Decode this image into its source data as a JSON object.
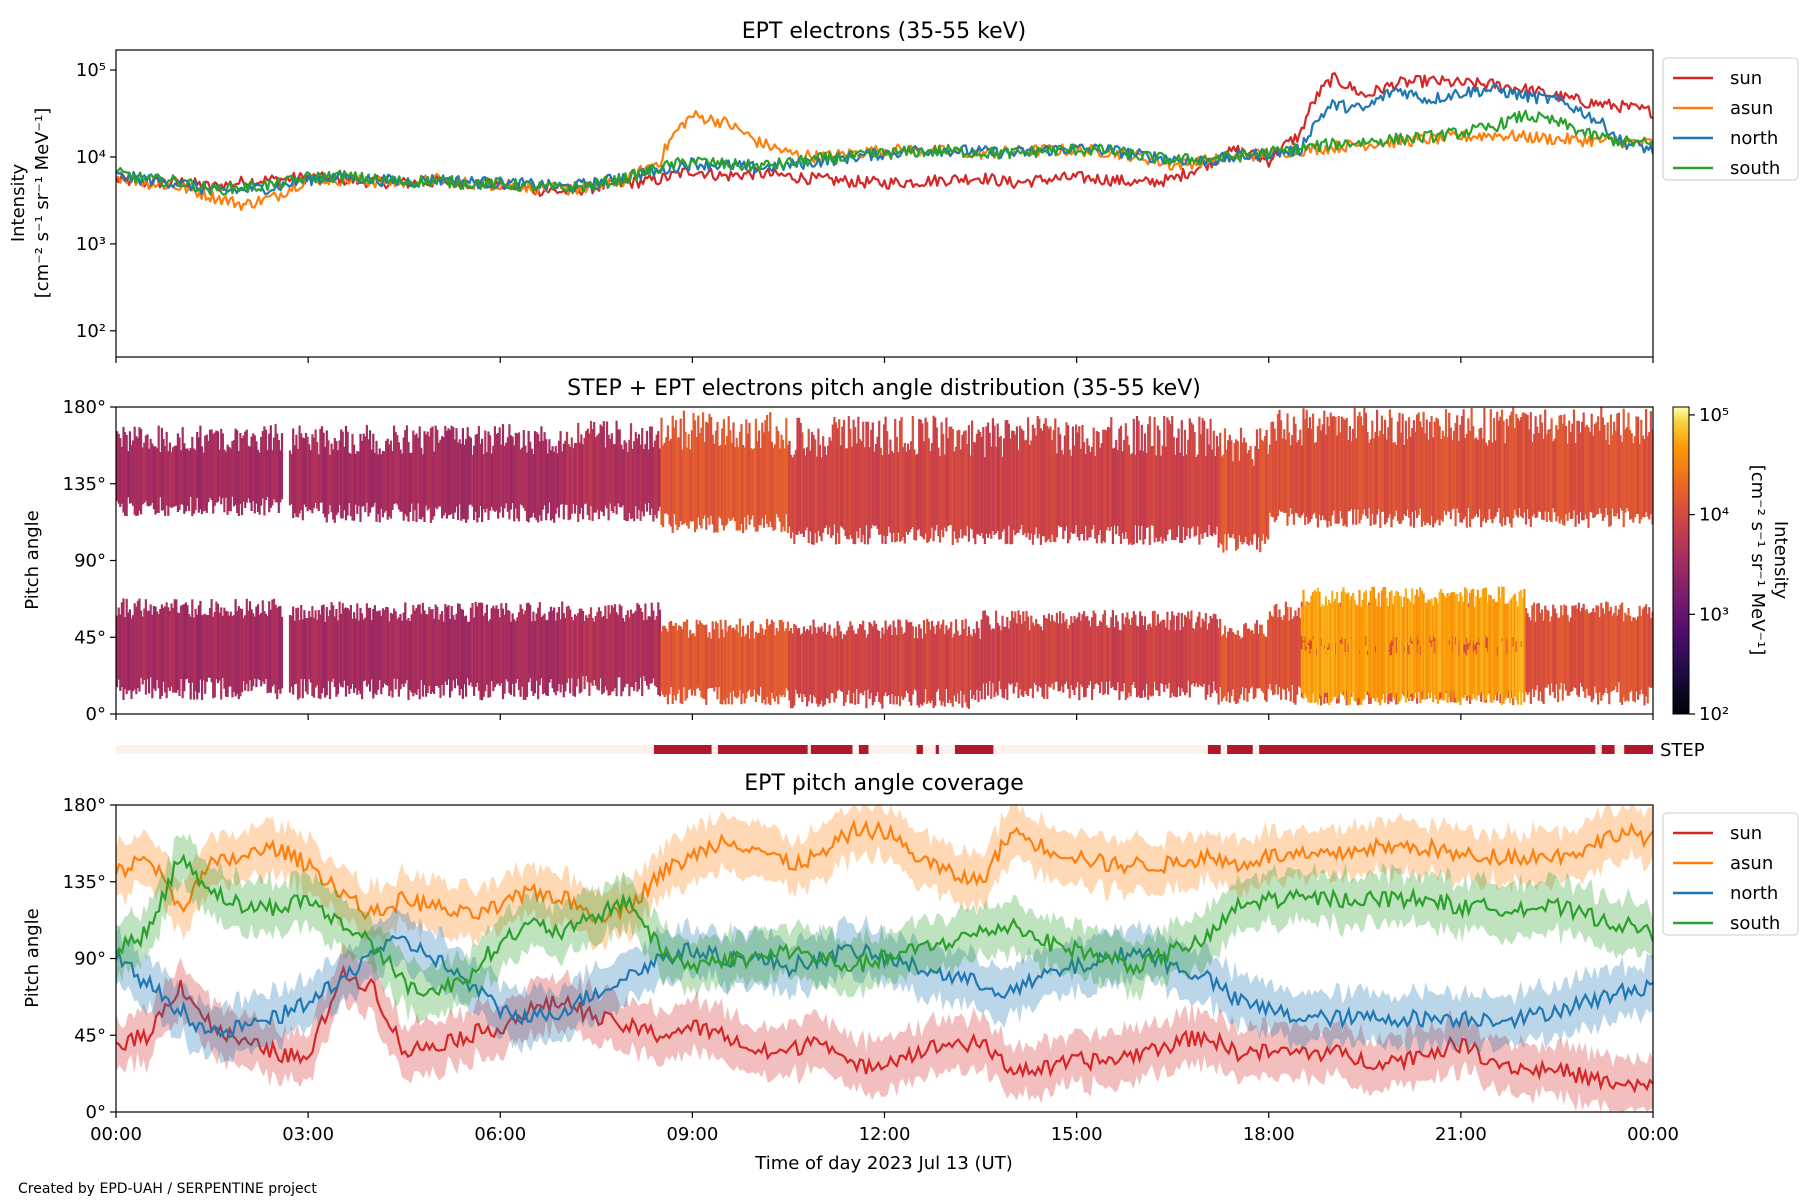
{
  "footer": "Created by EPD-UAH / SERPENTINE project",
  "xlabel": "Time of day 2023 Jul 13 (UT)",
  "x_ticks": [
    "00:00",
    "03:00",
    "06:00",
    "09:00",
    "12:00",
    "15:00",
    "18:00",
    "21:00",
    "00:00"
  ],
  "colors": {
    "sun": "#d62728",
    "asun": "#ff7f0e",
    "north": "#1f77b4",
    "south": "#2ca02c",
    "step": "#b2182b",
    "step_off": "#fdf1ec"
  },
  "chart_data": [
    {
      "type": "line",
      "title": "EPT electrons (35-55 keV)",
      "ylabel": [
        "Intensity",
        "[cm⁻² s⁻¹ sr⁻¹ MeV⁻¹]"
      ],
      "yscale": "log",
      "ylim": [
        50,
        170000
      ],
      "y_ticks": [
        {
          "v": 100,
          "label": "10²"
        },
        {
          "v": 1000,
          "label": "10³"
        },
        {
          "v": 10000,
          "label": "10⁴"
        },
        {
          "v": 100000,
          "label": "10⁵"
        }
      ],
      "xlim_hours": [
        0,
        24
      ],
      "legend": "outside-right",
      "x": [
        0,
        0.5,
        1,
        1.5,
        2,
        2.5,
        3,
        3.5,
        4,
        4.5,
        5,
        5.5,
        6,
        6.5,
        7,
        7.5,
        8,
        8.5,
        9,
        9.5,
        10,
        10.5,
        11,
        11.5,
        12,
        12.5,
        13,
        13.5,
        14,
        14.5,
        15,
        15.5,
        16,
        16.5,
        17,
        17.5,
        18,
        18.5,
        19,
        19.5,
        20,
        20.5,
        21,
        21.5,
        22,
        22.5,
        23,
        23.5,
        24
      ],
      "series": [
        {
          "name": "sun",
          "values": [
            5500,
            5000,
            5200,
            4500,
            5200,
            5500,
            5800,
            5500,
            5200,
            5000,
            5200,
            5000,
            4800,
            4200,
            4000,
            4500,
            5000,
            5500,
            7000,
            6000,
            6500,
            6000,
            5500,
            5200,
            5000,
            5200,
            5500,
            5800,
            5000,
            5500,
            5800,
            5500,
            5000,
            5500,
            8000,
            12000,
            9000,
            18000,
            80000,
            50000,
            70000,
            75000,
            70000,
            68000,
            60000,
            50000,
            42000,
            38000,
            33000
          ]
        },
        {
          "name": "asun",
          "values": [
            6000,
            5000,
            4500,
            3500,
            2800,
            3500,
            5500,
            5500,
            5200,
            5000,
            5500,
            5000,
            4800,
            4500,
            4200,
            4500,
            5500,
            9000,
            30000,
            25000,
            15000,
            11000,
            10000,
            11000,
            12000,
            12000,
            11500,
            11000,
            11500,
            12000,
            12000,
            11500,
            10000,
            8000,
            9000,
            10000,
            11000,
            12000,
            13000,
            14000,
            15000,
            16000,
            17000,
            18000,
            17000,
            16000,
            15500,
            15000,
            14500
          ]
        },
        {
          "name": "north",
          "values": [
            6000,
            5500,
            5000,
            4000,
            4200,
            4500,
            5500,
            6000,
            5500,
            5200,
            5500,
            5200,
            5000,
            4800,
            4500,
            5000,
            6000,
            7000,
            8500,
            8000,
            7500,
            8000,
            9000,
            10000,
            11000,
            12000,
            12000,
            11500,
            11000,
            12000,
            12500,
            12000,
            10500,
            9500,
            9000,
            10000,
            11000,
            12000,
            40000,
            35000,
            60000,
            45000,
            55000,
            60000,
            50000,
            45000,
            30000,
            15000,
            12000
          ]
        },
        {
          "name": "south",
          "values": [
            6500,
            5500,
            5200,
            4200,
            4500,
            4800,
            5800,
            6000,
            5500,
            5200,
            5300,
            5000,
            4900,
            4600,
            4300,
            4800,
            5800,
            7500,
            9000,
            8200,
            7800,
            8500,
            9500,
            10000,
            11000,
            11500,
            11800,
            11200,
            11000,
            11800,
            12200,
            11800,
            10200,
            9200,
            9500,
            10200,
            11200,
            12500,
            14000,
            15000,
            16000,
            17000,
            19000,
            22000,
            30000,
            25000,
            18000,
            15000,
            14000
          ]
        }
      ]
    },
    {
      "type": "heatmap",
      "title": "STEP + EPT electrons pitch angle distribution (35-55 keV)",
      "ylabel": "Pitch angle",
      "ylim": [
        0,
        180
      ],
      "y_ticks": [
        "0°",
        "45°",
        "90°",
        "135°",
        "180°"
      ],
      "colorbar": {
        "scale": "log",
        "range": [
          100,
          120000
        ],
        "ticks": [
          {
            "v": 100,
            "label": "10²"
          },
          {
            "v": 1000,
            "label": "10³"
          },
          {
            "v": 10000,
            "label": "10⁴"
          },
          {
            "v": 100000,
            "label": "10⁵"
          }
        ],
        "label": [
          "Intensity",
          "[cm⁻² s⁻¹ sr⁻¹ MeV⁻¹]"
        ],
        "colormap": "inferno"
      },
      "step_label": "STEP",
      "step_segments_hours": [
        [
          8.4,
          9.3
        ],
        [
          9.4,
          10.8
        ],
        [
          10.85,
          11.5
        ],
        [
          11.6,
          11.75
        ],
        [
          12.5,
          12.6
        ],
        [
          12.8,
          12.85
        ],
        [
          13.1,
          13.7
        ],
        [
          17.05,
          17.25
        ],
        [
          17.35,
          17.75
        ],
        [
          17.85,
          23.1
        ],
        [
          23.2,
          23.4
        ],
        [
          23.55,
          24
        ]
      ],
      "bands": [
        {
          "x": [
            0,
            2.6
          ],
          "lo": [
            8,
            62
          ],
          "hi": [
            122,
            170
          ],
          "level": 3500
        },
        {
          "x": [
            2.7,
            7.0
          ],
          "lo": [
            8,
            60
          ],
          "hi": [
            118,
            170
          ],
          "level": 3500
        },
        {
          "x": [
            7.0,
            8.5
          ],
          "lo": [
            10,
            60
          ],
          "hi": [
            118,
            172
          ],
          "level": 4500
        },
        {
          "x": [
            8.5,
            10.5
          ],
          "lo": [
            5,
            50
          ],
          "hi": [
            112,
            178
          ],
          "level": 14000
        },
        {
          "x": [
            10.5,
            13.5
          ],
          "lo": [
            3,
            50
          ],
          "hi": [
            105,
            175
          ],
          "level": 9000
        },
        {
          "x": [
            13.5,
            17.2
          ],
          "lo": [
            8,
            55
          ],
          "hi": [
            105,
            175
          ],
          "level": 8000
        },
        {
          "x": [
            17.2,
            18.0
          ],
          "lo": [
            5,
            50
          ],
          "hi": [
            100,
            168
          ],
          "level": 12000
        },
        {
          "x": [
            18.0,
            24.0
          ],
          "lo": [
            5,
            60
          ],
          "hi": [
            115,
            180
          ],
          "level": 12000
        },
        {
          "x": [
            18.5,
            22.0
          ],
          "lo": [
            5,
            40
          ],
          "hi": [
            40,
            75
          ],
          "level": 50000
        }
      ]
    },
    {
      "type": "line",
      "title": "EPT pitch angle coverage",
      "ylabel": "Pitch angle",
      "ylim": [
        0,
        180
      ],
      "y_ticks": [
        "0°",
        "45°",
        "90°",
        "135°",
        "180°"
      ],
      "legend": "outside-right",
      "x": [
        0,
        0.5,
        1,
        1.5,
        2,
        2.5,
        3,
        3.5,
        4,
        4.5,
        5,
        5.5,
        6,
        6.5,
        7,
        7.5,
        8,
        8.5,
        9,
        9.5,
        10,
        10.5,
        11,
        11.5,
        12,
        12.5,
        13,
        13.5,
        14,
        14.5,
        15,
        15.5,
        16,
        16.5,
        17,
        17.5,
        18,
        18.5,
        19,
        19.5,
        20,
        20.5,
        21,
        21.5,
        22,
        22.5,
        23,
        23.5,
        24
      ],
      "band_halfwidth": 15,
      "series": [
        {
          "name": "sun",
          "values": [
            40,
            45,
            75,
            50,
            40,
            35,
            30,
            80,
            75,
            35,
            40,
            45,
            50,
            60,
            65,
            55,
            50,
            45,
            50,
            45,
            35,
            35,
            45,
            25,
            30,
            35,
            40,
            40,
            25,
            25,
            30,
            30,
            35,
            40,
            45,
            35,
            35,
            35,
            35,
            30,
            30,
            35,
            40,
            30,
            25,
            25,
            20,
            15,
            15
          ]
        },
        {
          "name": "asun",
          "values": [
            140,
            150,
            120,
            145,
            150,
            155,
            145,
            130,
            115,
            125,
            120,
            115,
            120,
            130,
            125,
            115,
            120,
            140,
            150,
            160,
            155,
            145,
            150,
            165,
            165,
            150,
            140,
            135,
            165,
            155,
            150,
            145,
            145,
            145,
            150,
            145,
            150,
            150,
            150,
            155,
            155,
            155,
            150,
            150,
            150,
            150,
            155,
            165,
            160
          ]
        },
        {
          "name": "north",
          "values": [
            90,
            75,
            60,
            45,
            50,
            55,
            65,
            75,
            95,
            100,
            90,
            75,
            60,
            55,
            60,
            70,
            80,
            90,
            95,
            90,
            90,
            85,
            90,
            95,
            90,
            85,
            80,
            75,
            70,
            80,
            85,
            90,
            95,
            85,
            80,
            65,
            60,
            55,
            55,
            55,
            55,
            55,
            55,
            55,
            55,
            60,
            65,
            70,
            75
          ]
        },
        {
          "name": "south",
          "values": [
            95,
            105,
            150,
            130,
            120,
            120,
            125,
            110,
            100,
            75,
            70,
            80,
            100,
            110,
            105,
            115,
            125,
            95,
            85,
            90,
            90,
            95,
            90,
            85,
            90,
            95,
            100,
            105,
            110,
            100,
            95,
            90,
            85,
            95,
            100,
            120,
            125,
            125,
            125,
            125,
            125,
            125,
            120,
            120,
            120,
            120,
            115,
            110,
            105
          ]
        }
      ]
    }
  ]
}
